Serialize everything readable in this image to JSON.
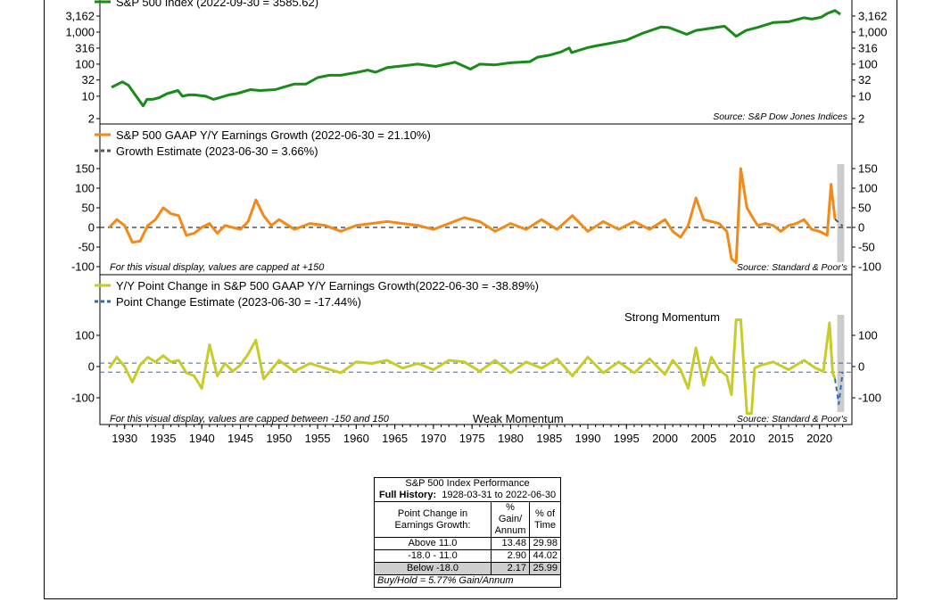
{
  "chart_data": [
    {
      "type": "line",
      "panel": "top",
      "y_scale": "log",
      "ylim": [
        2,
        6000
      ],
      "y_ticks": [
        "3,162",
        "1,000",
        "316",
        "100",
        "32",
        "10",
        "2"
      ],
      "y_tick_values": [
        3162,
        1000,
        316,
        100,
        32,
        10,
        2
      ],
      "legend": [
        {
          "label": "S&P 500 Index (2022-09-30 = 3585.62)",
          "color": "#1a8a1a"
        }
      ],
      "source": "Source:   S&P Dow Jones Indices",
      "series": [
        {
          "name": "S&P 500 Index (2022-09-30 = 3585.62)",
          "color": "#1a8a1a",
          "x": [
            1928.3,
            1929.7,
            1930.5,
            1931.5,
            1932.4,
            1932.9,
            1933.6,
            1934.5,
            1935.5,
            1936.9,
            1937.5,
            1938.3,
            1939.0,
            1940.5,
            1941.5,
            1942.3,
            1943.5,
            1944.5,
            1946.3,
            1947.5,
            1949.5,
            1950.5,
            1952.0,
            1953.5,
            1955.0,
            1956.5,
            1958.0,
            1960.0,
            1961.5,
            1962.5,
            1964.0,
            1966.0,
            1968.0,
            1970.3,
            1972.8,
            1974.8,
            1976.0,
            1978.0,
            1980.0,
            1982.5,
            1983.5,
            1985.0,
            1986.5,
            1987.6,
            1987.9,
            1990.0,
            1991.0,
            1993.0,
            1995.0,
            1997.0,
            1999.5,
            2000.5,
            2002.8,
            2004.0,
            2007.7,
            2009.2,
            2010.5,
            2012.0,
            2014.0,
            2016.0,
            2018.0,
            2019.0,
            2020.2,
            2021.0,
            2022.0,
            2022.7
          ],
          "y": [
            19,
            28,
            22,
            10,
            5,
            8,
            8,
            9,
            12,
            15,
            10,
            11,
            11,
            10,
            8,
            9,
            11,
            12,
            16,
            15,
            16,
            19,
            24,
            24,
            38,
            45,
            45,
            55,
            65,
            56,
            78,
            88,
            100,
            85,
            115,
            70,
            100,
            95,
            110,
            120,
            165,
            190,
            240,
            320,
            230,
            330,
            370,
            450,
            560,
            900,
            1450,
            1380,
            850,
            1130,
            1520,
            740,
            1130,
            1400,
            1980,
            2100,
            2800,
            2550,
            2900,
            3800,
            4700,
            3586
          ]
        }
      ]
    },
    {
      "type": "line",
      "panel": "middle",
      "ylim": [
        -100,
        150
      ],
      "y_ticks": [
        150,
        100,
        50,
        0,
        -50,
        -100
      ],
      "legend": [
        {
          "label": "S&P 500 GAAP Y/Y Earnings Growth (2022-06-30 = 21.10%)",
          "color": "#f28a1a",
          "style": "solid"
        },
        {
          "label": "Growth Estimate (2023-06-30 = 3.66%)",
          "color": "#555555",
          "style": "dashed"
        }
      ],
      "note": "For this visual display, values are capped at +150",
      "source": "Source:   Standard & Poor's",
      "series": [
        {
          "name": "S&P 500 GAAP Y/Y Earnings Growth",
          "color": "#f28a1a",
          "x": [
            1928.0,
            1929.0,
            1930.0,
            1931.0,
            1932.0,
            1933.0,
            1934.0,
            1935.0,
            1936.0,
            1937.0,
            1938.0,
            1939.0,
            1940.0,
            1941.0,
            1942.0,
            1943.0,
            1944.0,
            1945.0,
            1946.0,
            1947.0,
            1948.0,
            1949.0,
            1950.0,
            1952.0,
            1954.0,
            1956.0,
            1958.0,
            1960.0,
            1962.0,
            1964.0,
            1966.0,
            1968.0,
            1970.0,
            1972.0,
            1974.0,
            1976.0,
            1978.0,
            1980.0,
            1982.0,
            1984.0,
            1986.0,
            1988.0,
            1990.0,
            1992.0,
            1994.0,
            1996.0,
            1998.0,
            2000.0,
            2001.0,
            2002.0,
            2003.0,
            2004.0,
            2005.0,
            2006.0,
            2007.0,
            2008.0,
            2008.6,
            2009.2,
            2009.8,
            2010.6,
            2011.5,
            2012.0,
            2013.0,
            2014.0,
            2015.0,
            2016.0,
            2017.0,
            2018.0,
            2019.0,
            2020.0,
            2021.0,
            2021.5,
            2022.0
          ],
          "y": [
            0,
            20,
            5,
            -38,
            -35,
            5,
            20,
            50,
            35,
            30,
            -20,
            -15,
            0,
            10,
            -15,
            5,
            0,
            -5,
            15,
            70,
            30,
            5,
            20,
            -5,
            10,
            5,
            -10,
            5,
            10,
            15,
            10,
            5,
            -5,
            10,
            25,
            15,
            -10,
            10,
            -5,
            20,
            -5,
            30,
            -10,
            15,
            -5,
            15,
            -5,
            20,
            -10,
            -25,
            5,
            75,
            20,
            15,
            10,
            -10,
            -80,
            -90,
            150,
            50,
            20,
            5,
            10,
            5,
            -10,
            5,
            10,
            20,
            -5,
            -10,
            -20,
            110,
            21.1
          ]
        },
        {
          "name": "Growth Estimate",
          "color": "#555555",
          "x": [
            2022.0,
            2023.0
          ],
          "y": [
            21.1,
            3.66
          ]
        }
      ]
    },
    {
      "type": "line",
      "panel": "bottom",
      "ylim": [
        -150,
        150
      ],
      "y_ticks": [
        100,
        0,
        -100
      ],
      "legend": [
        {
          "label": "Y/Y Point Change in S&P 500 GAAP Y/Y Earnings Growth(2022-06-30 = -38.89%)",
          "color": "#c8cc2a",
          "style": "solid"
        },
        {
          "label": "Point Change Estimate (2023-06-30 = -17.44%)",
          "color": "#2a6db0",
          "style": "dashed"
        }
      ],
      "reference_lines": [
        11.0,
        -18.0
      ],
      "annotations": [
        "Strong Momentum",
        "Weak Momentum"
      ],
      "note": "For this visual display, values are capped between -150 and 150",
      "source": "Source:   Standard & Poor's",
      "series": [
        {
          "name": "Y/Y Point Change in S&P 500 GAAP Y/Y Earnings Growth",
          "color": "#c8cc2a",
          "x": [
            1928.0,
            1929.0,
            1930.0,
            1931.0,
            1932.0,
            1933.0,
            1934.0,
            1935.0,
            1936.0,
            1937.0,
            1938.0,
            1939.0,
            1940.0,
            1941.0,
            1942.0,
            1943.0,
            1944.0,
            1945.0,
            1946.0,
            1947.0,
            1948.0,
            1950.0,
            1952.0,
            1954.0,
            1956.0,
            1958.0,
            1960.0,
            1962.0,
            1964.0,
            1966.0,
            1968.0,
            1970.0,
            1972.0,
            1974.0,
            1976.0,
            1978.0,
            1980.0,
            1982.0,
            1984.0,
            1986.0,
            1988.0,
            1990.0,
            1992.0,
            1994.0,
            1996.0,
            1998.0,
            2000.0,
            2001.0,
            2002.0,
            2003.0,
            2004.0,
            2005.0,
            2006.0,
            2007.0,
            2008.0,
            2008.6,
            2009.2,
            2009.8,
            2010.6,
            2011.2,
            2011.6,
            2012.5,
            2014.0,
            2016.0,
            2018.0,
            2019.5,
            2020.5,
            2021.3,
            2021.7,
            2022.0
          ],
          "y": [
            -5,
            30,
            0,
            -50,
            5,
            30,
            15,
            35,
            15,
            20,
            -20,
            -30,
            -70,
            70,
            -30,
            10,
            -15,
            5,
            40,
            85,
            -40,
            20,
            -15,
            10,
            -5,
            -20,
            15,
            10,
            20,
            -5,
            10,
            -10,
            20,
            15,
            -15,
            20,
            -20,
            15,
            -5,
            25,
            -30,
            30,
            -20,
            15,
            -20,
            25,
            -25,
            20,
            -10,
            -70,
            60,
            -60,
            30,
            -10,
            -30,
            -90,
            150,
            150,
            -150,
            -150,
            -5,
            5,
            15,
            -10,
            20,
            -5,
            -15,
            140,
            -20,
            -38.89
          ]
        },
        {
          "name": "Point Change Estimate",
          "color": "#2a6db0",
          "x": [
            2022.0,
            2022.5,
            2023.0
          ],
          "y": [
            -38.89,
            -120,
            -17.44
          ]
        }
      ]
    }
  ],
  "x_axis": {
    "ticks": [
      "1930",
      "1935",
      "1940",
      "1945",
      "1950",
      "1955",
      "1960",
      "1965",
      "1970",
      "1975",
      "1980",
      "1985",
      "1990",
      "1995",
      "2000",
      "2005",
      "2010",
      "2015",
      "2020"
    ]
  },
  "table": {
    "title": "S&P 500 Index Performance",
    "subtitle_bold": "Full History:",
    "subtitle_rest": "1928-03-31 to 2022-06-30",
    "col1": "Point Change in Earnings Growth:",
    "col2": "% Gain/ Annum",
    "col3": "% of Time",
    "rows": [
      {
        "label": "Above 11.0",
        "gain": "13.48",
        "time": "29.98"
      },
      {
        "label": "-18.0 - 11.0",
        "gain": "2.90",
        "time": "44.02"
      },
      {
        "label": "Below -18.0",
        "gain": "2.17",
        "time": "25.99"
      }
    ],
    "footer": "Buy/Hold = 5.77% Gain/Annum"
  }
}
